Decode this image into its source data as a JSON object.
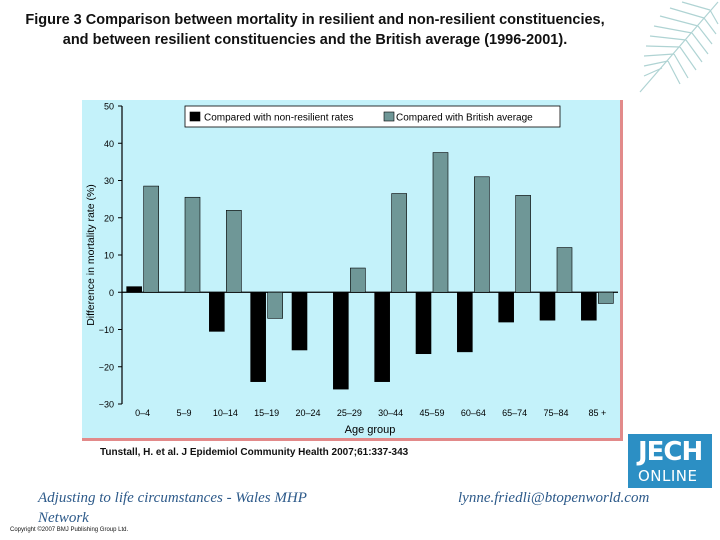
{
  "title": {
    "line1": "Figure 3 Comparison between mortality in resilient and non-resilient constituencies,",
    "line2": "and between resilient constituencies and the British average (1996-2001)."
  },
  "chart_data": {
    "type": "bar",
    "xlabel": "Age group",
    "ylabel": "Difference in mortality rate (%)",
    "ylim": [
      -30,
      50
    ],
    "yticks": [
      50,
      40,
      30,
      20,
      10,
      0,
      -10,
      -20,
      -30
    ],
    "ytick_labels": [
      "50",
      "40",
      "30 ",
      "20",
      "10",
      "0",
      "−10",
      "−20",
      "−30"
    ],
    "categories": [
      "0–4",
      "5–9",
      "10–14",
      "15–19",
      "20–24",
      "25–29",
      "30–44",
      "45–59",
      "60–64",
      "65–74",
      "75–84",
      "85 +"
    ],
    "legend_position": "top",
    "grid": false,
    "series": [
      {
        "name": "Compared with non-resilient rates",
        "color": "#000000",
        "values": [
          1.5,
          0,
          -10.5,
          -24,
          -15.5,
          -26,
          -24,
          -16.5,
          -16,
          -8,
          -7.5,
          -7.5
        ]
      },
      {
        "name": "Compared with British average",
        "color": "#6f9797",
        "values": [
          28.5,
          25.5,
          22,
          -7,
          0,
          6.5,
          26.5,
          37.5,
          31,
          26,
          12,
          -3
        ]
      }
    ]
  },
  "citation": "Tunstall, H. et al. J Epidemiol Community Health 2007;61:337-343",
  "logo": {
    "top": "JECH",
    "bottom": "ONLINE"
  },
  "footer": {
    "left": "Adjusting to life circumstances - Wales MHP Network",
    "right": "lynne.friedli@btopenworld.com"
  },
  "copyright": "Copyright ©2007 BMJ Publishing Group Ltd."
}
